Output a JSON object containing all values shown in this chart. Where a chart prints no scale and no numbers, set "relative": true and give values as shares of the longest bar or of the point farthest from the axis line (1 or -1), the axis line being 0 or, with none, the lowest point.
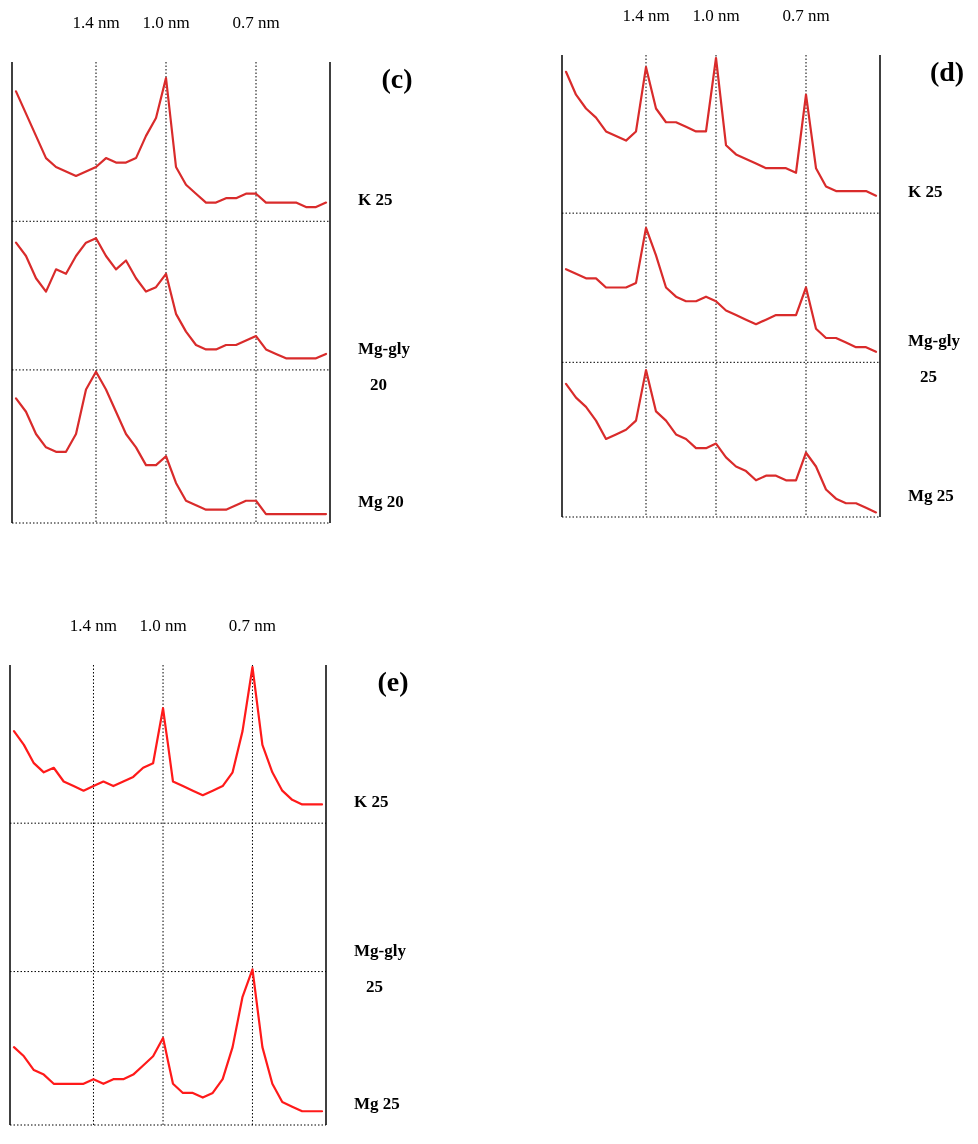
{
  "chart_data": [
    {
      "type": "line",
      "annotations": [
        "(c)"
      ],
      "relative": true,
      "grid": "x",
      "categories": [
        null,
        null,
        null,
        null,
        null,
        null,
        null,
        null,
        "1.4 nm",
        null,
        null,
        null,
        null,
        null,
        null,
        "1.0 nm",
        null,
        null,
        null,
        null,
        null,
        null,
        null,
        null,
        "0.7 nm",
        null,
        null,
        null,
        null,
        null,
        null,
        null
      ],
      "ref_lines": [
        {
          "axis": "y",
          "value": 0.678
        },
        {
          "axis": "y",
          "value": 0.344
        }
      ],
      "series": [
        {
          "name": "K 25",
          "color": "#d92b2b",
          "values": [
            0.97,
            0.92,
            0.87,
            0.82,
            0.8,
            0.79,
            0.78,
            0.79,
            0.8,
            0.82,
            0.81,
            0.81,
            0.82,
            0.87,
            0.91,
            1.0,
            0.8,
            0.76,
            0.74,
            0.72,
            0.72,
            0.73,
            0.73,
            0.74,
            0.74,
            0.72,
            0.72,
            0.72,
            0.72,
            0.71,
            0.71,
            0.72
          ]
        },
        {
          "name": "Mg-gly 20",
          "color": "#d92b2b",
          "values": [
            0.63,
            0.6,
            0.55,
            0.52,
            0.57,
            0.56,
            0.6,
            0.63,
            0.64,
            0.6,
            0.57,
            0.59,
            0.55,
            0.52,
            0.53,
            0.56,
            0.47,
            0.43,
            0.4,
            0.39,
            0.39,
            0.4,
            0.4,
            0.41,
            0.42,
            0.39,
            0.38,
            0.37,
            0.37,
            0.37,
            0.37,
            0.38
          ]
        },
        {
          "name": "Mg 20",
          "color": "#d92b2b",
          "values": [
            0.28,
            0.25,
            0.2,
            0.17,
            0.16,
            0.16,
            0.2,
            0.3,
            0.34,
            0.3,
            0.25,
            0.2,
            0.17,
            0.13,
            0.13,
            0.15,
            0.09,
            0.05,
            0.04,
            0.03,
            0.03,
            0.03,
            0.04,
            0.05,
            0.05,
            0.02,
            0.02,
            0.02,
            0.02,
            0.02,
            0.02,
            0.02
          ]
        }
      ]
    },
    {
      "type": "line",
      "annotations": [
        "(d)"
      ],
      "relative": true,
      "grid": "x",
      "categories": [
        null,
        null,
        null,
        null,
        null,
        null,
        null,
        null,
        "1.4 nm",
        null,
        null,
        null,
        null,
        null,
        null,
        "1.0 nm",
        null,
        null,
        null,
        null,
        null,
        null,
        null,
        null,
        "0.7 nm",
        null,
        null,
        null,
        null,
        null,
        null,
        null
      ],
      "ref_lines": [
        {
          "axis": "y",
          "value": 0.662
        },
        {
          "axis": "y",
          "value": 0.337
        }
      ],
      "series": [
        {
          "name": "K 25",
          "color": "#d92b2b",
          "values": [
            0.97,
            0.92,
            0.89,
            0.87,
            0.84,
            0.83,
            0.82,
            0.84,
            0.98,
            0.89,
            0.86,
            0.86,
            0.85,
            0.84,
            0.84,
            1.0,
            0.81,
            0.79,
            0.78,
            0.77,
            0.76,
            0.76,
            0.76,
            0.75,
            0.92,
            0.76,
            0.72,
            0.71,
            0.71,
            0.71,
            0.71,
            0.7
          ]
        },
        {
          "name": "Mg-gly 25",
          "color": "#d92b2b",
          "values": [
            0.54,
            0.53,
            0.52,
            0.52,
            0.5,
            0.5,
            0.5,
            0.51,
            0.63,
            0.57,
            0.5,
            0.48,
            0.47,
            0.47,
            0.48,
            0.47,
            0.45,
            0.44,
            0.43,
            0.42,
            0.43,
            0.44,
            0.44,
            0.44,
            0.5,
            0.41,
            0.39,
            0.39,
            0.38,
            0.37,
            0.37,
            0.36
          ]
        },
        {
          "name": "Mg 25",
          "color": "#d92b2b",
          "values": [
            0.29,
            0.26,
            0.24,
            0.21,
            0.17,
            0.18,
            0.19,
            0.21,
            0.32,
            0.23,
            0.21,
            0.18,
            0.17,
            0.15,
            0.15,
            0.16,
            0.13,
            0.11,
            0.1,
            0.08,
            0.09,
            0.09,
            0.08,
            0.08,
            0.14,
            0.11,
            0.06,
            0.04,
            0.03,
            0.03,
            0.02,
            0.01
          ]
        }
      ]
    },
    {
      "type": "line",
      "relative": true,
      "grid": "x",
      "categories": [
        null,
        null,
        null,
        null,
        null,
        null,
        null,
        null,
        "1.4 nm",
        null,
        null,
        null,
        null,
        null,
        null,
        "1.0 nm",
        null,
        null,
        null,
        null,
        null,
        null,
        null,
        null,
        "0.7 nm",
        null,
        null,
        null,
        null,
        null,
        null,
        null
      ],
      "ref_lines": [
        {
          "axis": "y",
          "value": 0.659
        },
        {
          "axis": "y",
          "value": 0.335
        }
      ],
      "annotations": [
        "(e)",
        "Mg-gly 25"
      ],
      "series": [
        {
          "name": "K 25",
          "color": "#ff1a1a",
          "values": [
            0.86,
            0.83,
            0.79,
            0.77,
            0.78,
            0.75,
            0.74,
            0.73,
            0.74,
            0.75,
            0.74,
            0.75,
            0.76,
            0.78,
            0.79,
            0.91,
            0.75,
            0.74,
            0.73,
            0.72,
            0.73,
            0.74,
            0.77,
            0.86,
            1.0,
            0.83,
            0.77,
            0.73,
            0.71,
            0.7,
            0.7,
            0.7
          ]
        },
        {
          "name": "Mg 25",
          "color": "#ff1a1a",
          "values": [
            0.17,
            0.15,
            0.12,
            0.11,
            0.09,
            0.09,
            0.09,
            0.09,
            0.1,
            0.09,
            0.1,
            0.1,
            0.11,
            0.13,
            0.15,
            0.19,
            0.09,
            0.07,
            0.07,
            0.06,
            0.07,
            0.1,
            0.17,
            0.28,
            0.34,
            0.17,
            0.09,
            0.05,
            0.04,
            0.03,
            0.03,
            0.03
          ]
        }
      ]
    }
  ]
}
